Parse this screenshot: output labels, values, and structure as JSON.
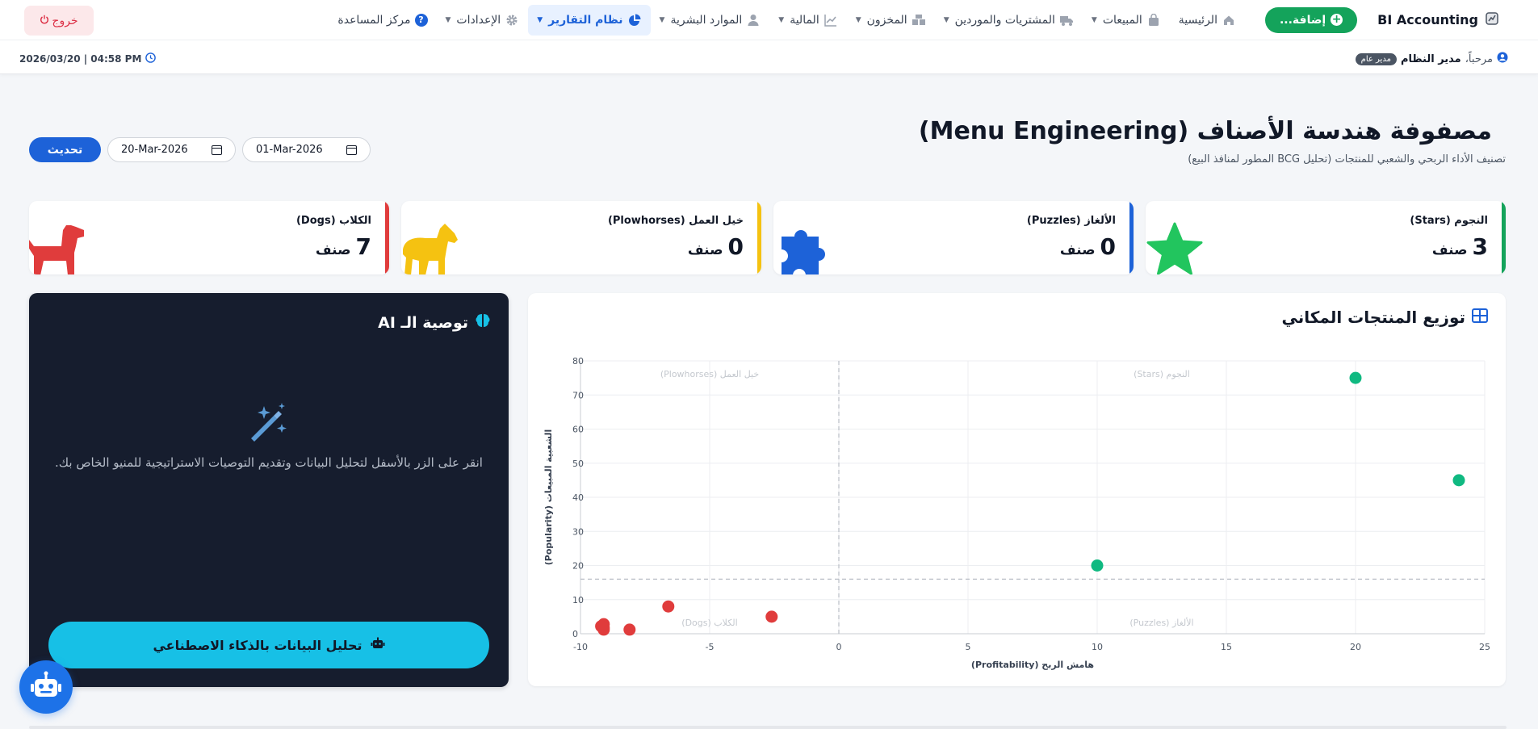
{
  "nav": {
    "brand": "BI Accounting",
    "add_label": "إضافة...",
    "items": [
      {
        "label": "الرئيسية",
        "icon": "home-icon"
      },
      {
        "label": "المبيعات",
        "icon": "shopping-bag-icon"
      },
      {
        "label": "المشتريات والموردين",
        "icon": "truck-icon"
      },
      {
        "label": "المخزون",
        "icon": "boxes-icon"
      },
      {
        "label": "المالية",
        "icon": "chart-line-icon"
      },
      {
        "label": "الموارد البشرية",
        "icon": "user-icon"
      },
      {
        "label": "نظام التقارير",
        "icon": "pie-chart-icon"
      },
      {
        "label": "الإعدادات",
        "icon": "gear-icon"
      },
      {
        "label": "مركز المساعدة",
        "icon": "help-icon"
      }
    ],
    "logout": "خروج",
    "help_glyph": "?"
  },
  "user": {
    "greeting": "مرحباً،",
    "name": "مدير النظام",
    "role": "مدير عام",
    "datetime": "2026/03/20 | 04:58 PM"
  },
  "page": {
    "title": "مصفوفة هندسة الأصناف (Menu Engineering)",
    "subtitle": "تصنيف الأداء الربحي والشعبي للمنتجات (تحليل BCG المطور لمنافذ البيع)",
    "date_from": "01-Mar-2026",
    "date_to": "20-Mar-2026",
    "refresh": "تحديث"
  },
  "kpis": [
    {
      "label": "النجوم (Stars)",
      "value": "3",
      "unit": "صنف",
      "color": "#14a35b",
      "icon": "star-icon"
    },
    {
      "label": "الألغاز (Puzzles)",
      "value": "0",
      "unit": "صنف",
      "color": "#1d62d8",
      "icon": "puzzle-icon"
    },
    {
      "label": "خيل العمل (Plowhorses)",
      "value": "0",
      "unit": "صنف",
      "color": "#f5c211",
      "icon": "horse-icon"
    },
    {
      "label": "الكلاب (Dogs)",
      "value": "7",
      "unit": "صنف",
      "color": "#e03c3c",
      "icon": "dog-icon"
    }
  ],
  "chart_card": {
    "title": "توزيع المنتجات المكاني"
  },
  "ai": {
    "title": "توصية الـ AI",
    "text": "انقر على الزر بالأسفل لتحليل البيانات وتقديم التوصيات الاستراتيجية للمنيو الخاص بك.",
    "button": "تحليل البيانات بالذكاء الاصطناعي"
  },
  "chart_data": {
    "type": "scatter",
    "xlabel": "هامش الربح (Profitability)",
    "ylabel": "الشعبية المبيعات (Popularity)",
    "xlim": [
      -10,
      25
    ],
    "ylim": [
      0,
      80
    ],
    "xticks": [
      -10,
      -5,
      0,
      5,
      10,
      15,
      20,
      25
    ],
    "yticks": [
      0,
      10,
      20,
      30,
      40,
      50,
      60,
      70,
      80
    ],
    "grid": true,
    "x_threshold": 0,
    "y_threshold": 16,
    "quadrant_labels": {
      "top_left": "خيل العمل (Plowhorses)",
      "top_right": "النجوم (Stars)",
      "bottom_left": "الكلاب (Dogs)",
      "bottom_right": "الألغاز (Puzzles)"
    },
    "series": [
      {
        "color": "#10b981",
        "points": [
          [
            20,
            75
          ],
          [
            24,
            45
          ],
          [
            10,
            20
          ]
        ]
      },
      {
        "color": "#e03c3c",
        "points": [
          [
            -9.1,
            2.8
          ],
          [
            -9.1,
            1.8
          ],
          [
            -9.1,
            1.2
          ],
          [
            -8.1,
            1.2
          ],
          [
            -6.6,
            8
          ],
          [
            -2.6,
            5
          ],
          [
            -9.2,
            2.2
          ]
        ]
      }
    ]
  }
}
